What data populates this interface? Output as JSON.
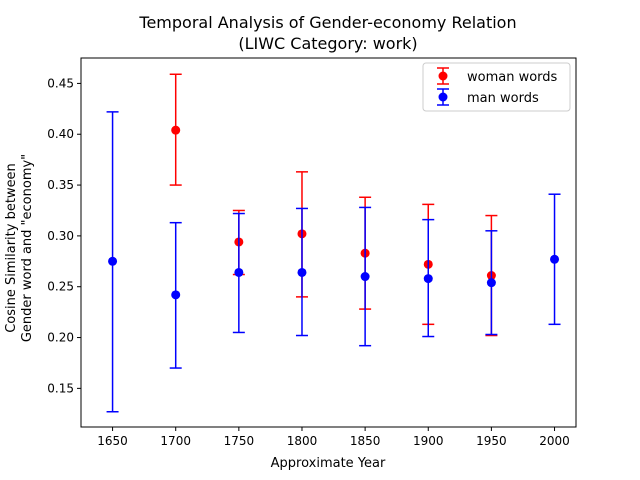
{
  "chart_data": {
    "type": "scatter",
    "title": "Temporal Analysis of Gender-economy Relation",
    "subtitle": "(LIWC Category: work)",
    "xlabel": "Approximate Year",
    "ylabel_line1": "Cosine Similarity between",
    "ylabel_line2": "Gender word and \"economy\"",
    "xlim": [
      1625,
      2017
    ],
    "ylim": [
      0.112,
      0.475
    ],
    "xticks": [
      1650,
      1700,
      1750,
      1800,
      1850,
      1900,
      1950,
      2000
    ],
    "xtick_labels": [
      "1650",
      "1700",
      "1750",
      "1800",
      "1850",
      "1900",
      "1950",
      "2000"
    ],
    "yticks": [
      0.15,
      0.2,
      0.25,
      0.3,
      0.35,
      0.4,
      0.45
    ],
    "ytick_labels": [
      "0.15",
      "0.20",
      "0.25",
      "0.30",
      "0.35",
      "0.40",
      "0.45"
    ],
    "grid": false,
    "legend_position": "top-right",
    "series": [
      {
        "name": "woman words",
        "color": "#ff0000",
        "marker": "circle",
        "points": [
          {
            "x": 1700,
            "y": 0.404,
            "low": 0.35,
            "high": 0.459
          },
          {
            "x": 1750,
            "y": 0.294,
            "low": 0.262,
            "high": 0.325
          },
          {
            "x": 1800,
            "y": 0.302,
            "low": 0.24,
            "high": 0.363
          },
          {
            "x": 1850,
            "y": 0.283,
            "low": 0.228,
            "high": 0.338
          },
          {
            "x": 1900,
            "y": 0.272,
            "low": 0.213,
            "high": 0.331
          },
          {
            "x": 1950,
            "y": 0.261,
            "low": 0.202,
            "high": 0.32
          }
        ]
      },
      {
        "name": "man words",
        "color": "#0000ff",
        "marker": "circle",
        "points": [
          {
            "x": 1650,
            "y": 0.275,
            "low": 0.127,
            "high": 0.422
          },
          {
            "x": 1700,
            "y": 0.242,
            "low": 0.17,
            "high": 0.313
          },
          {
            "x": 1750,
            "y": 0.264,
            "low": 0.205,
            "high": 0.322
          },
          {
            "x": 1800,
            "y": 0.264,
            "low": 0.202,
            "high": 0.327
          },
          {
            "x": 1850,
            "y": 0.26,
            "low": 0.192,
            "high": 0.328
          },
          {
            "x": 1900,
            "y": 0.258,
            "low": 0.201,
            "high": 0.316
          },
          {
            "x": 1950,
            "y": 0.254,
            "low": 0.203,
            "high": 0.305
          },
          {
            "x": 2000,
            "y": 0.277,
            "low": 0.213,
            "high": 0.341
          }
        ]
      }
    ]
  }
}
